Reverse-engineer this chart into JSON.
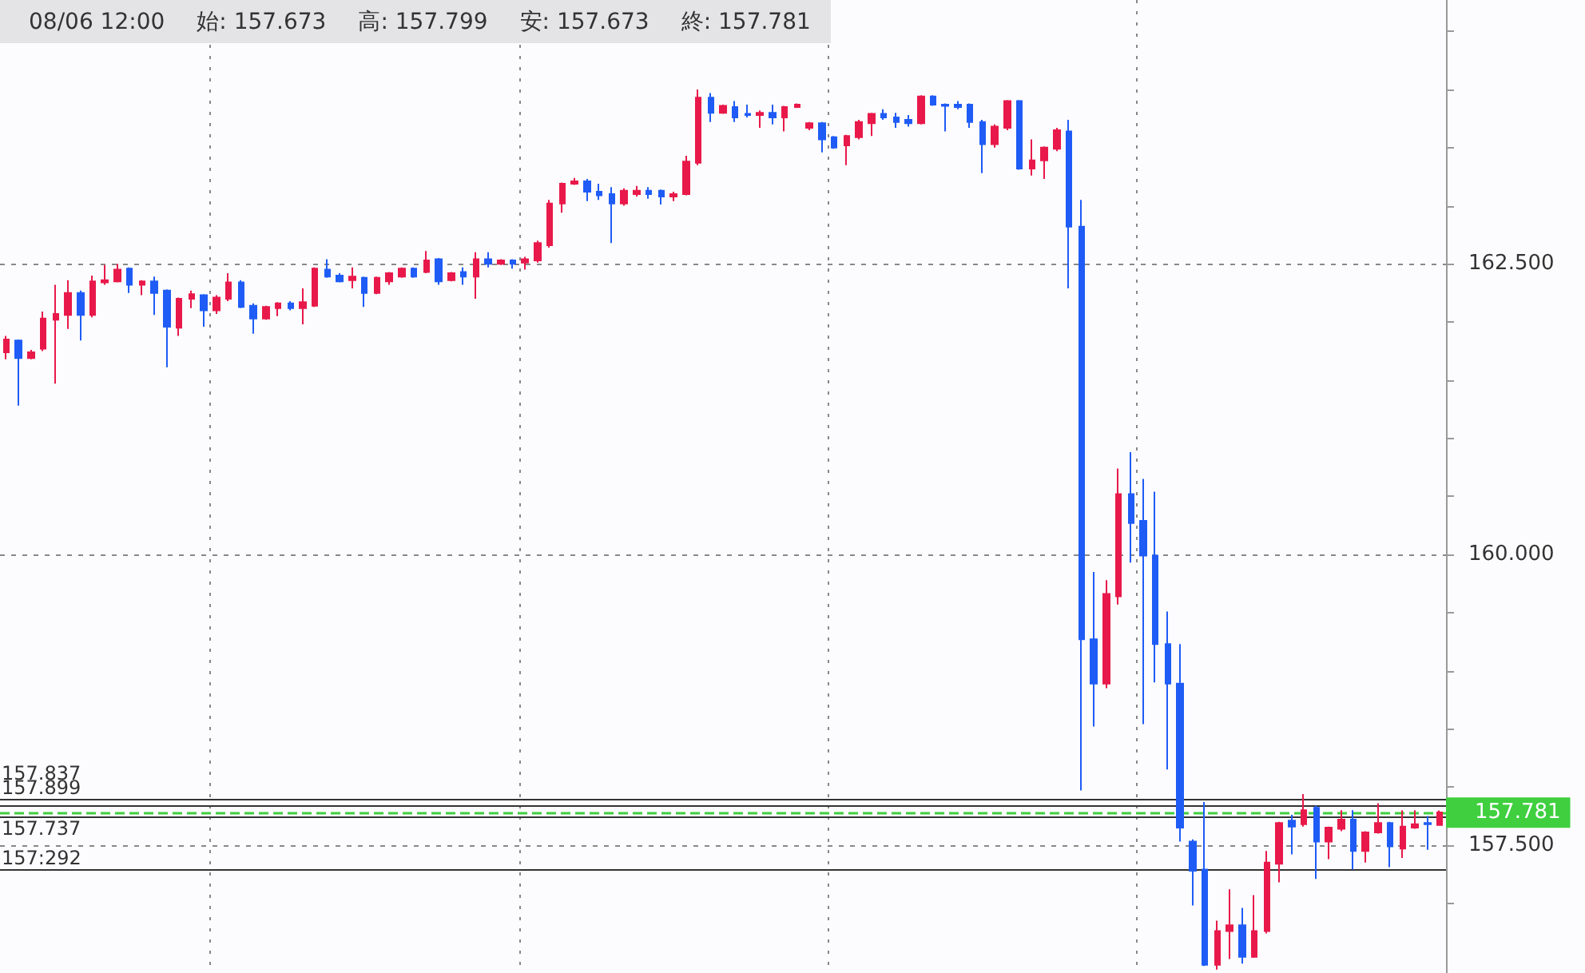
{
  "chart_data": {
    "type": "candlestick",
    "annotations": [
      "08/06 12:00",
      "始:  157.673",
      "高:  157.799",
      "安:  157.673",
      "終:  157.781"
    ],
    "categories": [
      null,
      null,
      null,
      null,
      null,
      null,
      null,
      null,
      null,
      null,
      null,
      null,
      null,
      null,
      null,
      null,
      null,
      null,
      null,
      null,
      null,
      null,
      null,
      null,
      null,
      null,
      null,
      null,
      null,
      null,
      null,
      null,
      null,
      null,
      null,
      null,
      null,
      null,
      null,
      null,
      null,
      null,
      null,
      null,
      null,
      null,
      null,
      null,
      null,
      null,
      null,
      null,
      null,
      null,
      null,
      null,
      null,
      null,
      null,
      null,
      null,
      null,
      null,
      null,
      null,
      null,
      null,
      null,
      null,
      null,
      null,
      null,
      null,
      null,
      null,
      null,
      null,
      null,
      null,
      null,
      null,
      null,
      null,
      null,
      null,
      null,
      null,
      null,
      null,
      null,
      null,
      null,
      null,
      null,
      null,
      null,
      null,
      null,
      null,
      null,
      null,
      null,
      null,
      null,
      null,
      null,
      null,
      null,
      null,
      null,
      null,
      null,
      null,
      null,
      null,
      null,
      null
    ],
    "ohlc": [
      [
        161.74,
        161.88,
        161.68,
        161.85
      ],
      [
        161.84,
        161.85,
        161.28,
        161.69
      ],
      [
        161.69,
        161.76,
        161.68,
        161.74
      ],
      [
        161.77,
        162.09,
        161.75,
        162.03
      ],
      [
        162.02,
        162.32,
        161.47,
        162.07
      ],
      [
        162.06,
        162.36,
        161.94,
        162.25
      ],
      [
        162.25,
        162.27,
        161.84,
        162.06
      ],
      [
        162.06,
        162.4,
        162.04,
        162.35
      ],
      [
        162.34,
        162.49,
        162.32,
        162.36
      ],
      [
        162.35,
        162.5,
        162.34,
        162.45
      ],
      [
        162.46,
        162.47,
        162.25,
        162.32
      ],
      [
        162.32,
        162.36,
        162.23,
        162.35
      ],
      [
        162.35,
        162.39,
        162.06,
        162.25
      ],
      [
        162.27,
        162.28,
        161.61,
        161.96
      ],
      [
        161.95,
        162.21,
        161.88,
        162.2
      ],
      [
        162.2,
        162.27,
        162.12,
        162.24
      ],
      [
        162.23,
        162.24,
        161.96,
        162.1
      ],
      [
        162.1,
        162.23,
        162.07,
        162.21
      ],
      [
        162.2,
        162.42,
        162.18,
        162.34
      ],
      [
        162.34,
        162.36,
        162.12,
        162.13
      ],
      [
        162.14,
        162.16,
        161.9,
        162.03
      ],
      [
        162.03,
        162.14,
        162.02,
        162.13
      ],
      [
        162.12,
        162.17,
        162.05,
        162.16
      ],
      [
        162.16,
        162.18,
        162.1,
        162.12
      ],
      [
        162.12,
        162.29,
        161.98,
        162.17
      ],
      [
        162.14,
        162.47,
        162.13,
        162.46
      ],
      [
        162.45,
        162.54,
        162.38,
        162.39
      ],
      [
        162.4,
        162.42,
        162.34,
        162.35
      ],
      [
        162.36,
        162.47,
        162.29,
        162.39
      ],
      [
        162.38,
        162.39,
        162.13,
        162.25
      ],
      [
        162.25,
        162.39,
        162.24,
        162.38
      ],
      [
        162.35,
        162.43,
        162.32,
        162.42
      ],
      [
        162.39,
        162.47,
        162.38,
        162.46
      ],
      [
        162.46,
        162.47,
        162.38,
        162.39
      ],
      [
        162.43,
        162.61,
        162.42,
        162.53
      ],
      [
        162.54,
        162.55,
        162.32,
        162.35
      ],
      [
        162.36,
        162.43,
        162.35,
        162.42
      ],
      [
        162.43,
        162.47,
        162.32,
        162.39
      ],
      [
        162.39,
        162.6,
        162.2,
        162.54
      ],
      [
        162.54,
        162.6,
        162.47,
        162.5
      ],
      [
        162.5,
        162.54,
        162.49,
        162.53
      ],
      [
        162.53,
        162.54,
        162.46,
        162.5
      ],
      [
        162.51,
        162.56,
        162.45,
        162.54
      ],
      [
        162.53,
        162.7,
        162.51,
        162.68
      ],
      [
        162.66,
        163.05,
        162.64,
        163.02
      ],
      [
        163.02,
        163.2,
        162.94,
        163.19
      ],
      [
        163.19,
        163.24,
        163.18,
        163.21
      ],
      [
        163.21,
        163.23,
        163.04,
        163.12
      ],
      [
        163.12,
        163.19,
        163.05,
        163.09
      ],
      [
        163.1,
        163.16,
        162.68,
        163.02
      ],
      [
        163.02,
        163.15,
        163.0,
        163.13
      ],
      [
        163.1,
        163.17,
        163.08,
        163.13
      ],
      [
        163.13,
        163.16,
        163.06,
        163.1
      ],
      [
        163.13,
        163.14,
        163.01,
        163.08
      ],
      [
        163.08,
        163.12,
        163.04,
        163.1
      ],
      [
        163.1,
        163.43,
        163.09,
        163.38
      ],
      [
        163.37,
        164.0,
        163.35,
        163.93
      ],
      [
        163.93,
        163.97,
        163.72,
        163.8
      ],
      [
        163.8,
        163.87,
        163.79,
        163.86
      ],
      [
        163.85,
        163.9,
        163.72,
        163.76
      ],
      [
        163.79,
        163.87,
        163.76,
        163.78
      ],
      [
        163.78,
        163.82,
        163.67,
        163.8
      ],
      [
        163.8,
        163.87,
        163.7,
        163.76
      ],
      [
        163.76,
        163.86,
        163.64,
        163.85
      ],
      [
        163.85,
        163.88,
        163.84,
        163.87
      ],
      [
        163.67,
        163.72,
        163.65,
        163.71
      ],
      [
        163.71,
        163.72,
        163.46,
        163.57
      ],
      [
        163.59,
        163.6,
        163.49,
        163.5
      ],
      [
        163.52,
        163.61,
        163.35,
        163.6
      ],
      [
        163.59,
        163.74,
        163.57,
        163.72
      ],
      [
        163.71,
        163.8,
        163.6,
        163.79
      ],
      [
        163.79,
        163.83,
        163.74,
        163.76
      ],
      [
        163.76,
        163.8,
        163.67,
        163.72
      ],
      [
        163.74,
        163.78,
        163.68,
        163.71
      ],
      [
        163.71,
        163.95,
        163.7,
        163.94
      ],
      [
        163.94,
        163.95,
        163.86,
        163.87
      ],
      [
        163.87,
        163.88,
        163.64,
        163.86
      ],
      [
        163.87,
        163.9,
        163.83,
        163.85
      ],
      [
        163.87,
        163.88,
        163.67,
        163.72
      ],
      [
        163.72,
        163.74,
        163.28,
        163.53
      ],
      [
        163.53,
        163.7,
        163.5,
        163.68
      ],
      [
        163.67,
        163.91,
        163.65,
        163.9
      ],
      [
        163.9,
        163.91,
        163.31,
        163.32
      ],
      [
        163.32,
        163.57,
        163.26,
        163.39
      ],
      [
        163.39,
        163.51,
        163.23,
        163.5
      ],
      [
        163.49,
        163.67,
        163.47,
        163.65
      ],
      [
        163.64,
        163.74,
        162.29,
        162.82
      ],
      [
        162.82,
        163.05,
        157.97,
        159.27
      ],
      [
        159.27,
        159.85,
        158.52,
        158.89
      ],
      [
        158.89,
        159.78,
        158.85,
        159.66
      ],
      [
        159.64,
        160.74,
        159.57,
        160.52
      ],
      [
        160.52,
        160.88,
        159.93,
        160.27
      ],
      [
        160.29,
        160.65,
        158.54,
        159.99
      ],
      [
        159.99,
        160.54,
        158.9,
        159.23
      ],
      [
        159.23,
        159.51,
        158.15,
        158.89
      ],
      [
        158.89,
        159.23,
        157.53,
        157.65
      ],
      [
        157.53,
        157.55,
        156.98,
        157.28
      ],
      [
        157.29,
        157.87,
        156.46,
        156.47
      ],
      [
        156.47,
        156.85,
        156.43,
        156.76
      ],
      [
        156.76,
        157.12,
        156.52,
        156.81
      ],
      [
        156.81,
        156.96,
        156.48,
        156.54
      ],
      [
        156.54,
        157.07,
        156.53,
        156.76
      ],
      [
        156.76,
        157.45,
        156.74,
        157.35
      ],
      [
        157.34,
        157.7,
        157.18,
        157.69
      ],
      [
        157.71,
        157.76,
        157.42,
        157.66
      ],
      [
        157.68,
        157.94,
        157.66,
        157.8
      ],
      [
        157.82,
        157.84,
        157.21,
        157.53
      ],
      [
        157.53,
        157.66,
        157.38,
        157.65
      ],
      [
        157.64,
        157.8,
        157.62,
        157.72
      ],
      [
        157.72,
        157.8,
        157.29,
        157.45
      ],
      [
        157.45,
        157.62,
        157.35,
        157.61
      ],
      [
        157.61,
        157.86,
        157.6,
        157.69
      ],
      [
        157.69,
        157.7,
        157.31,
        157.49
      ],
      [
        157.47,
        157.8,
        157.39,
        157.66
      ],
      [
        157.65,
        157.8,
        157.64,
        157.68
      ],
      [
        157.69,
        157.75,
        157.46,
        157.68
      ],
      [
        157.673,
        157.799,
        157.673,
        157.781
      ]
    ],
    "colors": [
      "#e8194a",
      "#1f5cf6",
      "#e8194a",
      "#e8194a",
      "#e8194a",
      "#e8194a",
      "#1f5cf6",
      "#e8194a",
      "#e8194a",
      "#e8194a",
      "#1f5cf6",
      "#e8194a",
      "#1f5cf6",
      "#1f5cf6",
      "#e8194a",
      "#e8194a",
      "#1f5cf6",
      "#e8194a",
      "#e8194a",
      "#1f5cf6",
      "#1f5cf6",
      "#e8194a",
      "#e8194a",
      "#1f5cf6",
      "#e8194a",
      "#e8194a",
      "#1f5cf6",
      "#1f5cf6",
      "#e8194a",
      "#1f5cf6",
      "#e8194a",
      "#e8194a",
      "#e8194a",
      "#1f5cf6",
      "#e8194a",
      "#1f5cf6",
      "#e8194a",
      "#1f5cf6",
      "#e8194a",
      "#1f5cf6",
      "#e8194a",
      "#1f5cf6",
      "#e8194a",
      "#e8194a",
      "#e8194a",
      "#e8194a",
      "#e8194a",
      "#1f5cf6",
      "#1f5cf6",
      "#1f5cf6",
      "#e8194a",
      "#e8194a",
      "#1f5cf6",
      "#1f5cf6",
      "#e8194a",
      "#e8194a",
      "#e8194a",
      "#1f5cf6",
      "#e8194a",
      "#1f5cf6",
      "#1f5cf6",
      "#e8194a",
      "#1f5cf6",
      "#e8194a",
      "#e8194a",
      "#e8194a",
      "#1f5cf6",
      "#1f5cf6",
      "#e8194a",
      "#e8194a",
      "#e8194a",
      "#1f5cf6",
      "#1f5cf6",
      "#1f5cf6",
      "#e8194a",
      "#1f5cf6",
      "#1f5cf6",
      "#1f5cf6",
      "#1f5cf6",
      "#1f5cf6",
      "#e8194a",
      "#e8194a",
      "#1f5cf6",
      "#e8194a",
      "#e8194a",
      "#e8194a",
      "#1f5cf6",
      "#1f5cf6",
      "#1f5cf6",
      "#e8194a",
      "#e8194a",
      "#1f5cf6",
      "#1f5cf6",
      "#1f5cf6",
      "#1f5cf6",
      "#1f5cf6",
      "#1f5cf6",
      "#1f5cf6",
      "#e8194a",
      "#e8194a",
      "#1f5cf6",
      "#e8194a",
      "#e8194a",
      "#e8194a",
      "#1f5cf6",
      "#e8194a",
      "#1f5cf6",
      "#e8194a",
      "#e8194a",
      "#1f5cf6",
      "#e8194a",
      "#e8194a",
      "#1f5cf6",
      "#e8194a",
      "#e8194a",
      "#1f5cf6",
      "#e8194a"
    ],
    "ylim": [
      156.4,
      164.77
    ],
    "yticks": [
      {
        "value": 157,
        "label": null
      },
      {
        "value": 157.5,
        "label": "157.500"
      },
      {
        "value": 158,
        "label": null
      },
      {
        "value": 158.5,
        "label": null
      },
      {
        "value": 159,
        "label": null
      },
      {
        "value": 159.5,
        "label": null
      },
      {
        "value": 160,
        "label": "160.000"
      },
      {
        "value": 160.5,
        "label": null
      },
      {
        "value": 161,
        "label": null
      },
      {
        "value": 161.5,
        "label": null
      },
      {
        "value": 162,
        "label": null
      },
      {
        "value": 162.5,
        "label": "162.500"
      },
      {
        "value": 163,
        "label": null
      },
      {
        "value": 163.5,
        "label": null
      },
      {
        "value": 164,
        "label": null
      },
      {
        "value": 164.5,
        "label": null
      }
    ],
    "ref_lines": [
      {
        "axis": "y",
        "value": 157.899,
        "label": "157.899",
        "color": "#333333",
        "line_style": "solid"
      },
      {
        "axis": "y",
        "value": 157.837,
        "label": "157.837",
        "color": "#333333",
        "line_style": "solid"
      },
      {
        "axis": "y",
        "value": 157.737,
        "label": "157.737",
        "color": "#333333",
        "line_style": "solid"
      },
      {
        "axis": "y",
        "value": 157.781,
        "label": "157.781",
        "color": "#3fcf3f",
        "line_style": "dashed"
      },
      {
        "axis": "y",
        "value": 157.292,
        "label": "157:292",
        "color": "#333333",
        "line_style": "solid"
      }
    ],
    "grid": true,
    "tick_labels": "y"
  }
}
